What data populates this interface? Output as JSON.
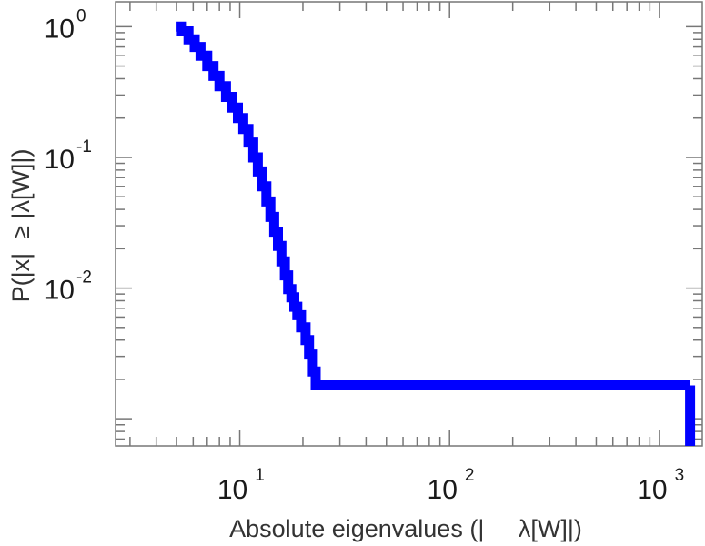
{
  "chart_data": {
    "type": "line",
    "title": "",
    "xlabel": "Absolute eigenvalues (|     λ[W]|)",
    "ylabel": "P(|x|  ≥ |λ[W]|)",
    "x_scale": "log",
    "y_scale": "log",
    "xlim": [
      2.56,
      1600
    ],
    "ylim": [
      0.00062,
      1.55
    ],
    "grid": false,
    "x_ticks": [
      {
        "value": 10,
        "base": "10",
        "exp": "1"
      },
      {
        "value": 100,
        "base": "10",
        "exp": "2"
      },
      {
        "value": 1000,
        "base": "10",
        "exp": "3"
      }
    ],
    "y_ticks": [
      {
        "value": 1,
        "base": "10",
        "exp": "0"
      },
      {
        "value": 0.1,
        "base": "10",
        "exp": "-1"
      },
      {
        "value": 0.01,
        "base": "10",
        "exp": "-2"
      }
    ],
    "series": [
      {
        "color": "#0000ff",
        "step": true,
        "x": [
          5.0,
          5.3,
          5.7,
          6.1,
          6.5,
          7.0,
          7.5,
          8.0,
          8.6,
          9.2,
          9.8,
          10.4,
          11.0,
          11.6,
          12.2,
          12.8,
          13.4,
          14.0,
          14.6,
          15.2,
          15.8,
          16.4,
          17.0,
          17.6,
          18.2,
          18.8,
          19.6,
          20.6,
          21.4,
          22.3,
          23.0,
          1400.0
        ],
        "y": [
          1.0,
          0.92,
          0.8,
          0.7,
          0.6,
          0.5,
          0.42,
          0.35,
          0.29,
          0.24,
          0.2,
          0.165,
          0.13,
          0.1,
          0.078,
          0.06,
          0.046,
          0.035,
          0.027,
          0.021,
          0.016,
          0.0125,
          0.0098,
          0.0085,
          0.0072,
          0.0062,
          0.005,
          0.004,
          0.0031,
          0.0023,
          0.0018,
          0.0018
        ]
      }
    ]
  }
}
